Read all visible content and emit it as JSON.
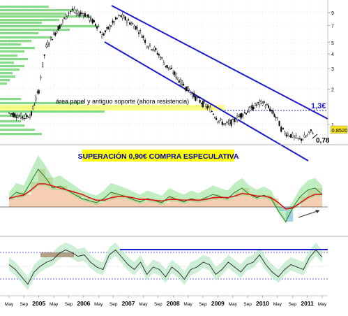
{
  "chart_data": [
    {
      "type": "candlestick",
      "title": "",
      "price_series": [
        [
          "2004-05",
          1.25
        ],
        [
          "2004-07",
          1.2
        ],
        [
          "2004-09",
          1.15
        ],
        [
          "2004-11",
          1.22
        ],
        [
          "2005-01",
          1.95
        ],
        [
          "2005-02",
          3.2
        ],
        [
          "2005-03",
          4.6
        ],
        [
          "2005-05",
          5.8
        ],
        [
          "2005-07",
          7.2
        ],
        [
          "2005-09",
          9.0
        ],
        [
          "2005-10",
          9.5
        ],
        [
          "2005-11",
          8.8
        ],
        [
          "2006-01",
          8.9
        ],
        [
          "2006-03",
          7.8
        ],
        [
          "2006-05",
          6.8
        ],
        [
          "2006-06",
          5.7
        ],
        [
          "2006-08",
          6.8
        ],
        [
          "2006-10",
          8.0
        ],
        [
          "2006-11",
          8.4
        ],
        [
          "2007-01",
          7.6
        ],
        [
          "2007-03",
          6.8
        ],
        [
          "2007-05",
          5.6
        ],
        [
          "2007-06",
          4.8
        ],
        [
          "2007-08",
          4.4
        ],
        [
          "2007-10",
          3.6
        ],
        [
          "2007-11",
          3.2
        ],
        [
          "2008-01",
          2.8
        ],
        [
          "2008-03",
          2.3
        ],
        [
          "2008-05",
          2.0
        ],
        [
          "2008-07",
          1.7
        ],
        [
          "2008-09",
          1.5
        ],
        [
          "2008-11",
          1.35
        ],
        [
          "2009-01",
          1.1
        ],
        [
          "2009-03",
          1.0
        ],
        [
          "2009-05",
          1.05
        ],
        [
          "2009-07",
          1.2
        ],
        [
          "2009-09",
          1.3
        ],
        [
          "2009-11",
          1.45
        ],
        [
          "2010-01",
          1.55
        ],
        [
          "2010-03",
          1.35
        ],
        [
          "2010-05",
          1.1
        ],
        [
          "2010-06",
          0.92
        ],
        [
          "2010-07",
          0.85
        ],
        [
          "2010-09",
          0.8
        ],
        [
          "2010-10",
          0.76
        ],
        [
          "2010-11",
          0.74
        ],
        [
          "2011-01",
          0.8
        ],
        [
          "2011-02",
          0.87
        ],
        [
          "2011-03",
          0.86
        ]
      ],
      "y_ticks": [
        "9",
        "7",
        "5",
        "4",
        "3",
        "2",
        "1"
      ],
      "x_ticks": [
        "May",
        "Sep",
        "2005",
        "May",
        "Sep",
        "2006",
        "May",
        "Sep",
        "2007",
        "May",
        "Sep",
        "2008",
        "May",
        "Sep",
        "2009",
        "May",
        "Sep",
        "2010",
        "May",
        "Sep",
        "2011",
        "May"
      ],
      "annotations": {
        "support_text": "área papel y antiguo soporte (ahora resistencia)",
        "level_high": "1,3€",
        "level_low": "0,78",
        "current_price": "0,8520"
      },
      "channel": "descending",
      "volume_profile": true,
      "grid": true
    },
    {
      "type": "line",
      "title": "",
      "annotation": "SUPERACIÓN 0,90€ COMPRA ESPECULATIVA",
      "osc_values": [
        0.2,
        0.35,
        0.3,
        0.6,
        0.9,
        0.7,
        0.45,
        0.5,
        0.4,
        0.3,
        0.2,
        0.15,
        0.1,
        0.2,
        0.35,
        0.3,
        0.25,
        0.18,
        0.12,
        0.2,
        0.15,
        0.1,
        0.25,
        0.18,
        0.12,
        0.2,
        0.15,
        0.22,
        0.3,
        0.25,
        0.2,
        0.35,
        0.45,
        0.3,
        0.22,
        0.28,
        0.2,
        -0.1,
        -0.35,
        0.0,
        0.25,
        0.4,
        0.45,
        0.3
      ],
      "signal_values": [
        0.2,
        0.25,
        0.28,
        0.4,
        0.55,
        0.55,
        0.5,
        0.45,
        0.4,
        0.35,
        0.3,
        0.22,
        0.16,
        0.16,
        0.22,
        0.25,
        0.25,
        0.22,
        0.18,
        0.18,
        0.16,
        0.14,
        0.18,
        0.18,
        0.16,
        0.17,
        0.16,
        0.18,
        0.22,
        0.23,
        0.22,
        0.26,
        0.32,
        0.3,
        0.26,
        0.26,
        0.22,
        0.1,
        -0.05,
        -0.02,
        0.1,
        0.22,
        0.3,
        0.3
      ]
    },
    {
      "type": "line",
      "title": "",
      "rsi_values": [
        55,
        45,
        30,
        15,
        40,
        52,
        60,
        65,
        78,
        85,
        80,
        72,
        75,
        60,
        50,
        45,
        75,
        85,
        70,
        55,
        45,
        60,
        35,
        50,
        45,
        30,
        50,
        40,
        25,
        45,
        50,
        60,
        55,
        35,
        45,
        60,
        50,
        40,
        55,
        60,
        75,
        55,
        40,
        30,
        45,
        55,
        50,
        45,
        70,
        85,
        70
      ]
    }
  ]
}
